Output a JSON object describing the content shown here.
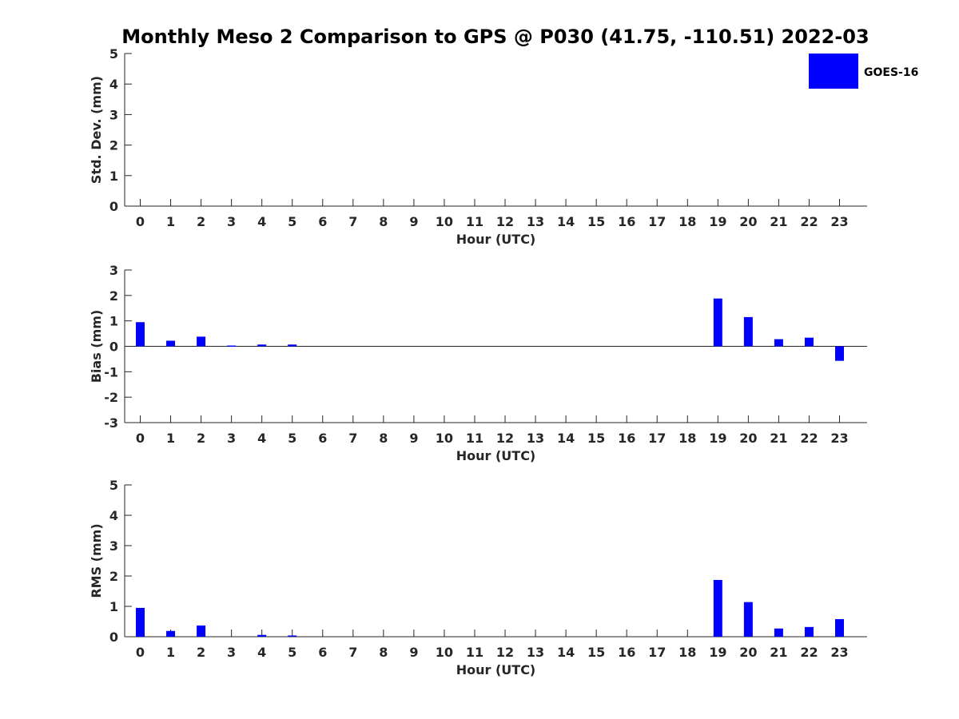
{
  "chart_data": {
    "type": "bar",
    "title": "Monthly Meso 2 Comparison to GPS @ P030 (41.75, -110.51) 2022-03",
    "legend": {
      "entries": [
        "GOES-16"
      ],
      "placement": "top-right"
    },
    "series_color": "#0000ff",
    "hours": [
      0,
      1,
      2,
      3,
      4,
      5,
      6,
      7,
      8,
      9,
      10,
      11,
      12,
      13,
      14,
      15,
      16,
      17,
      18,
      19,
      20,
      21,
      22,
      23
    ],
    "hour_labels": [
      "0",
      "1",
      "2",
      "3",
      "4",
      "5",
      "6",
      "7",
      "8",
      "9",
      "10",
      "11",
      "12",
      "13",
      "14",
      "15",
      "16",
      "17",
      "18",
      "19",
      "20",
      "21",
      "22",
      "23"
    ],
    "panels": [
      {
        "id": "std",
        "ylabel": "Std. Dev. (mm)",
        "xlabel": "Hour (UTC)",
        "ylim": [
          0,
          5
        ],
        "yticks": [
          "0",
          "1",
          "2",
          "3",
          "4",
          "5"
        ],
        "series": [
          {
            "name": "GOES-16",
            "values": [
              0,
              0,
              0,
              0,
              0,
              0,
              0,
              0,
              0,
              0,
              0,
              0,
              0,
              0,
              0,
              0,
              0,
              0,
              0,
              0,
              0,
              0,
              0,
              0
            ]
          }
        ]
      },
      {
        "id": "bias",
        "ylabel": "Bias (mm)",
        "xlabel": "Hour (UTC)",
        "ylim": [
          -3,
          3
        ],
        "yticks": [
          "-3",
          "-2",
          "-1",
          "0",
          "1",
          "2",
          "3"
        ],
        "series": [
          {
            "name": "GOES-16",
            "values": [
              0.95,
              0.22,
              0.38,
              0.03,
              0.07,
              0.07,
              0,
              0,
              0,
              0,
              0,
              0,
              0,
              0,
              0,
              0,
              0,
              0,
              0,
              1.88,
              1.15,
              0.28,
              0.34,
              -0.57
            ]
          }
        ]
      },
      {
        "id": "rms",
        "ylabel": "RMS (mm)",
        "xlabel": "Hour (UTC)",
        "ylim": [
          0,
          5
        ],
        "yticks": [
          "0",
          "1",
          "2",
          "3",
          "4",
          "5"
        ],
        "series": [
          {
            "name": "GOES-16",
            "values": [
              0.95,
              0.19,
              0.37,
              0,
              0.06,
              0.04,
              0,
              0,
              0,
              0,
              0,
              0,
              0,
              0,
              0,
              0,
              0,
              0,
              0,
              1.87,
              1.14,
              0.27,
              0.32,
              0.58
            ]
          }
        ]
      }
    ]
  }
}
